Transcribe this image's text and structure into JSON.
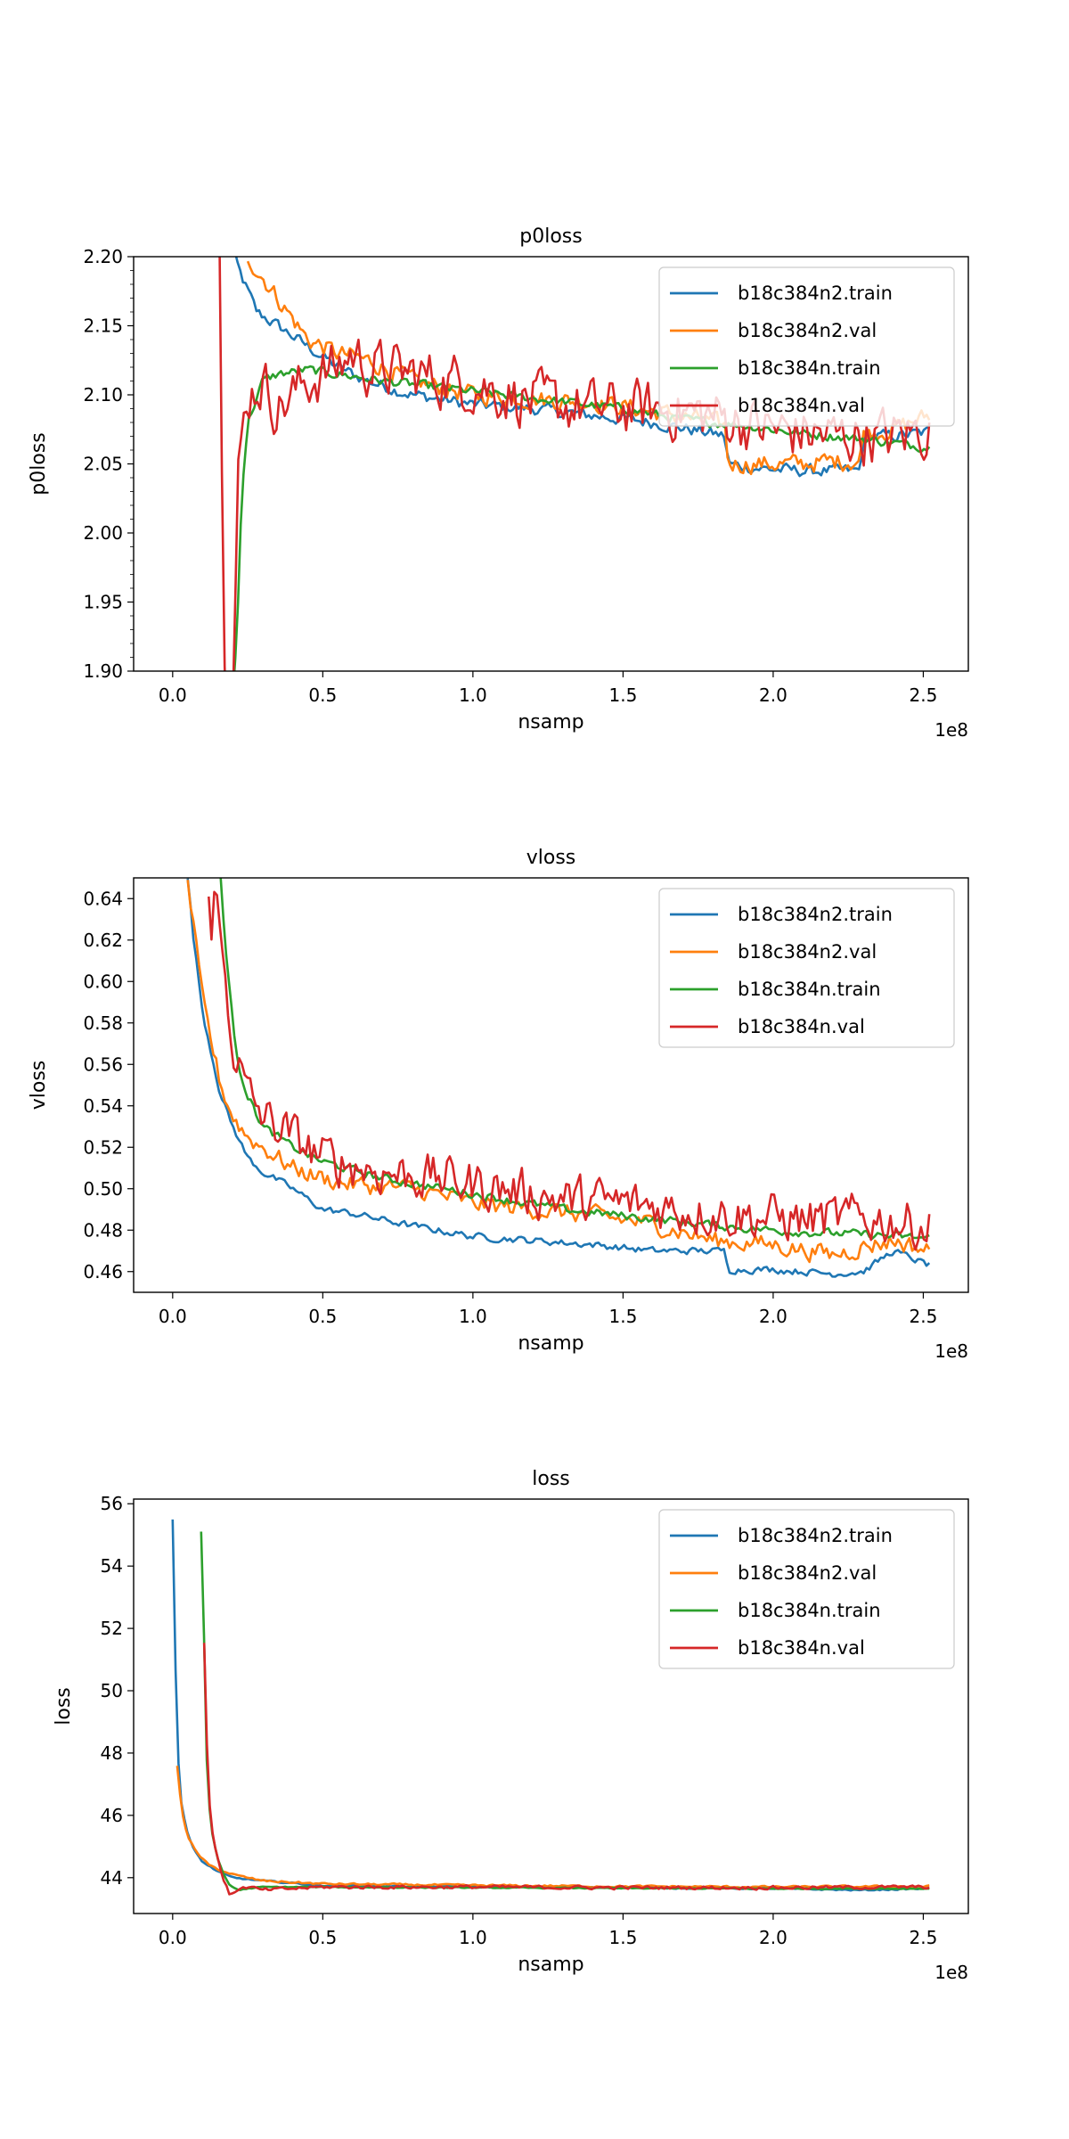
{
  "colors": {
    "c0": "#1f77b4",
    "c1": "#ff7f0e",
    "c2": "#2ca02c",
    "c3": "#d62728"
  },
  "chart_data": [
    {
      "type": "line",
      "title": "p0loss",
      "xlabel": "nsamp",
      "ylabel": "p0loss",
      "x_offset_label": "1e8",
      "xlim": [
        -0.13,
        2.65
      ],
      "ylim": [
        1.9,
        2.2
      ],
      "x_ticks": [
        "0.0",
        "0.5",
        "1.0",
        "1.5",
        "2.0",
        "2.5"
      ],
      "x_tick_values": [
        0,
        0.5,
        1.0,
        1.5,
        2.0,
        2.5
      ],
      "y_ticks": [
        "1.90",
        "1.95",
        "2.00",
        "2.05",
        "2.10",
        "2.15",
        "2.20"
      ],
      "y_tick_values": [
        1.9,
        1.95,
        2.0,
        2.05,
        2.1,
        2.15,
        2.2
      ],
      "legend": "top-right",
      "series": [
        {
          "name": "b18c384n2.train",
          "color": "#1f77b4",
          "noise": 0.004,
          "x": [
            0.18,
            0.22,
            0.28,
            0.35,
            0.45,
            0.55,
            0.65,
            0.8,
            1.0,
            1.2,
            1.4,
            1.6,
            1.8,
            1.84,
            1.85,
            1.9,
            2.0,
            2.1,
            2.2,
            2.29,
            2.3,
            2.4,
            2.52
          ],
          "y": [
            2.22,
            2.19,
            2.16,
            2.15,
            2.135,
            2.12,
            2.11,
            2.1,
            2.093,
            2.09,
            2.085,
            2.08,
            2.072,
            2.07,
            2.05,
            2.048,
            2.046,
            2.045,
            2.045,
            2.045,
            2.07,
            2.07,
            2.073
          ]
        },
        {
          "name": "b18c384n2.val",
          "color": "#ff7f0e",
          "noise": 0.006,
          "x": [
            0.25,
            0.3,
            0.35,
            0.45,
            0.55,
            0.65,
            0.8,
            1.0,
            1.2,
            1.4,
            1.6,
            1.8,
            1.84,
            1.85,
            1.9,
            2.0,
            2.1,
            2.2,
            2.29,
            2.3,
            2.4,
            2.52
          ],
          "y": [
            2.2,
            2.185,
            2.17,
            2.14,
            2.13,
            2.125,
            2.11,
            2.1,
            2.097,
            2.095,
            2.088,
            2.08,
            2.077,
            2.05,
            2.05,
            2.05,
            2.05,
            2.052,
            2.052,
            2.072,
            2.075,
            2.085
          ]
        },
        {
          "name": "b18c384n.train",
          "color": "#2ca02c",
          "noise": 0.003,
          "x": [
            0.2,
            0.215,
            0.23,
            0.25,
            0.3,
            0.35,
            0.45,
            0.55,
            0.7,
            0.9,
            1.1,
            1.3,
            1.5,
            1.7,
            1.9,
            2.1,
            2.3,
            2.52
          ],
          "y": [
            1.88,
            1.93,
            2.03,
            2.08,
            2.11,
            2.115,
            2.118,
            2.115,
            2.11,
            2.105,
            2.1,
            2.095,
            2.09,
            2.082,
            2.078,
            2.072,
            2.068,
            2.062
          ]
        },
        {
          "name": "b18c384n.val",
          "color": "#d62728",
          "noise": 0.018,
          "x": [
            0.155,
            0.17,
            0.185,
            0.2,
            0.21,
            0.22,
            0.25,
            0.3,
            0.35,
            0.45,
            0.55,
            0.6,
            0.65,
            0.8,
            1.0,
            1.2,
            1.4,
            1.6,
            1.8,
            2.0,
            2.2,
            2.4,
            2.52
          ],
          "y": [
            2.25,
            1.95,
            1.85,
            1.88,
            1.96,
            2.05,
            2.1,
            2.11,
            2.09,
            2.11,
            2.12,
            2.13,
            2.12,
            2.115,
            2.108,
            2.095,
            2.09,
            2.09,
            2.085,
            2.075,
            2.07,
            2.07,
            2.075
          ]
        }
      ]
    },
    {
      "type": "line",
      "title": "vloss",
      "xlabel": "nsamp",
      "ylabel": "vloss",
      "x_offset_label": "1e8",
      "xlim": [
        -0.13,
        2.65
      ],
      "ylim": [
        0.45,
        0.65
      ],
      "x_ticks": [
        "0.0",
        "0.5",
        "1.0",
        "1.5",
        "2.0",
        "2.5"
      ],
      "x_tick_values": [
        0,
        0.5,
        1.0,
        1.5,
        2.0,
        2.5
      ],
      "y_ticks": [
        "0.46",
        "0.48",
        "0.50",
        "0.52",
        "0.54",
        "0.56",
        "0.58",
        "0.60",
        "0.62",
        "0.64"
      ],
      "y_tick_values": [
        0.46,
        0.48,
        0.5,
        0.52,
        0.54,
        0.56,
        0.58,
        0.6,
        0.62,
        0.64
      ],
      "legend": "top-right",
      "series": [
        {
          "name": "b18c384n2.train",
          "color": "#1f77b4",
          "noise": 0.0015,
          "x": [
            0.05,
            0.07,
            0.1,
            0.13,
            0.16,
            0.2,
            0.25,
            0.3,
            0.4,
            0.5,
            0.6,
            0.8,
            1.0,
            1.2,
            1.4,
            1.6,
            1.84,
            1.85,
            2.0,
            2.2,
            2.3,
            2.4,
            2.52
          ],
          "y": [
            0.65,
            0.62,
            0.585,
            0.565,
            0.545,
            0.53,
            0.515,
            0.508,
            0.5,
            0.49,
            0.488,
            0.482,
            0.477,
            0.475,
            0.473,
            0.47,
            0.47,
            0.461,
            0.461,
            0.459,
            0.46,
            0.47,
            0.463
          ]
        },
        {
          "name": "b18c384n2.val",
          "color": "#ff7f0e",
          "noise": 0.004,
          "x": [
            0.05,
            0.07,
            0.1,
            0.13,
            0.16,
            0.2,
            0.25,
            0.3,
            0.4,
            0.5,
            0.6,
            0.8,
            1.0,
            1.2,
            1.4,
            1.6,
            1.8,
            2.0,
            2.2,
            2.3,
            2.4,
            2.52
          ],
          "y": [
            0.65,
            0.625,
            0.59,
            0.57,
            0.55,
            0.535,
            0.525,
            0.52,
            0.51,
            0.505,
            0.502,
            0.5,
            0.493,
            0.49,
            0.487,
            0.483,
            0.475,
            0.473,
            0.468,
            0.472,
            0.475,
            0.47
          ]
        },
        {
          "name": "b18c384n.train",
          "color": "#2ca02c",
          "noise": 0.0018,
          "x": [
            0.16,
            0.18,
            0.2,
            0.22,
            0.25,
            0.3,
            0.4,
            0.5,
            0.7,
            0.9,
            1.1,
            1.3,
            1.5,
            1.7,
            1.9,
            2.1,
            2.3,
            2.52
          ],
          "y": [
            0.65,
            0.61,
            0.58,
            0.56,
            0.545,
            0.53,
            0.52,
            0.513,
            0.505,
            0.5,
            0.495,
            0.49,
            0.487,
            0.484,
            0.481,
            0.479,
            0.478,
            0.476
          ]
        },
        {
          "name": "b18c384n.val",
          "color": "#d62728",
          "noise": 0.01,
          "x": [
            0.12,
            0.13,
            0.14,
            0.16,
            0.2,
            0.25,
            0.3,
            0.4,
            0.5,
            0.7,
            0.9,
            1.1,
            1.3,
            1.5,
            1.7,
            1.9,
            2.1,
            2.3,
            2.52
          ],
          "y": [
            0.65,
            0.63,
            0.645,
            0.62,
            0.57,
            0.545,
            0.535,
            0.525,
            0.515,
            0.508,
            0.505,
            0.5,
            0.495,
            0.493,
            0.49,
            0.487,
            0.485,
            0.486,
            0.482
          ]
        }
      ]
    },
    {
      "type": "line",
      "title": "loss",
      "xlabel": "nsamp",
      "ylabel": "loss",
      "x_offset_label": "1e8",
      "xlim": [
        -0.13,
        2.65
      ],
      "ylim": [
        42.85,
        56.15
      ],
      "x_ticks": [
        "0.0",
        "0.5",
        "1.0",
        "1.5",
        "2.0",
        "2.5"
      ],
      "x_tick_values": [
        0,
        0.5,
        1.0,
        1.5,
        2.0,
        2.5
      ],
      "y_ticks": [
        "44",
        "46",
        "48",
        "50",
        "52",
        "54",
        "56"
      ],
      "y_tick_values": [
        44,
        46,
        48,
        50,
        52,
        54,
        56
      ],
      "legend": "top-right",
      "series": [
        {
          "name": "b18c384n2.train",
          "color": "#1f77b4",
          "noise": 0.02,
          "x": [
            0.0,
            0.01,
            0.02,
            0.03,
            0.05,
            0.07,
            0.1,
            0.15,
            0.2,
            0.3,
            0.5,
            1.0,
            1.5,
            2.0,
            2.3,
            2.52
          ],
          "y": [
            55.5,
            50.5,
            47.5,
            46.3,
            45.4,
            44.9,
            44.5,
            44.2,
            44.0,
            43.9,
            43.75,
            43.7,
            43.68,
            43.65,
            43.6,
            43.65
          ]
        },
        {
          "name": "b18c384n2.val",
          "color": "#ff7f0e",
          "noise": 0.03,
          "x": [
            0.015,
            0.03,
            0.05,
            0.08,
            0.12,
            0.17,
            0.22,
            0.3,
            0.5,
            1.0,
            1.5,
            2.0,
            2.52
          ],
          "y": [
            47.6,
            46.2,
            45.3,
            44.8,
            44.4,
            44.2,
            44.05,
            43.9,
            43.8,
            43.75,
            43.72,
            43.7,
            43.72
          ]
        },
        {
          "name": "b18c384n.train",
          "color": "#2ca02c",
          "noise": 0.015,
          "x": [
            0.095,
            0.1,
            0.105,
            0.11,
            0.12,
            0.13,
            0.15,
            0.17,
            0.19,
            0.22,
            0.25,
            0.3,
            0.5,
            1.0,
            1.5,
            2.0,
            2.52
          ],
          "y": [
            55.1,
            53.5,
            51.5,
            48.5,
            46.5,
            45.5,
            44.6,
            44.1,
            43.75,
            43.6,
            43.65,
            43.7,
            43.7,
            43.68,
            43.66,
            43.65,
            43.65
          ]
        },
        {
          "name": "b18c384n.val",
          "color": "#d62728",
          "noise": 0.05,
          "x": [
            0.105,
            0.11,
            0.12,
            0.13,
            0.15,
            0.17,
            0.19,
            0.21,
            0.25,
            0.3,
            0.5,
            1.0,
            1.5,
            2.0,
            2.52
          ],
          "y": [
            51.5,
            49.5,
            46.7,
            45.6,
            44.6,
            43.9,
            43.45,
            43.6,
            43.7,
            43.6,
            43.7,
            43.7,
            43.68,
            43.68,
            43.7
          ]
        }
      ]
    }
  ]
}
